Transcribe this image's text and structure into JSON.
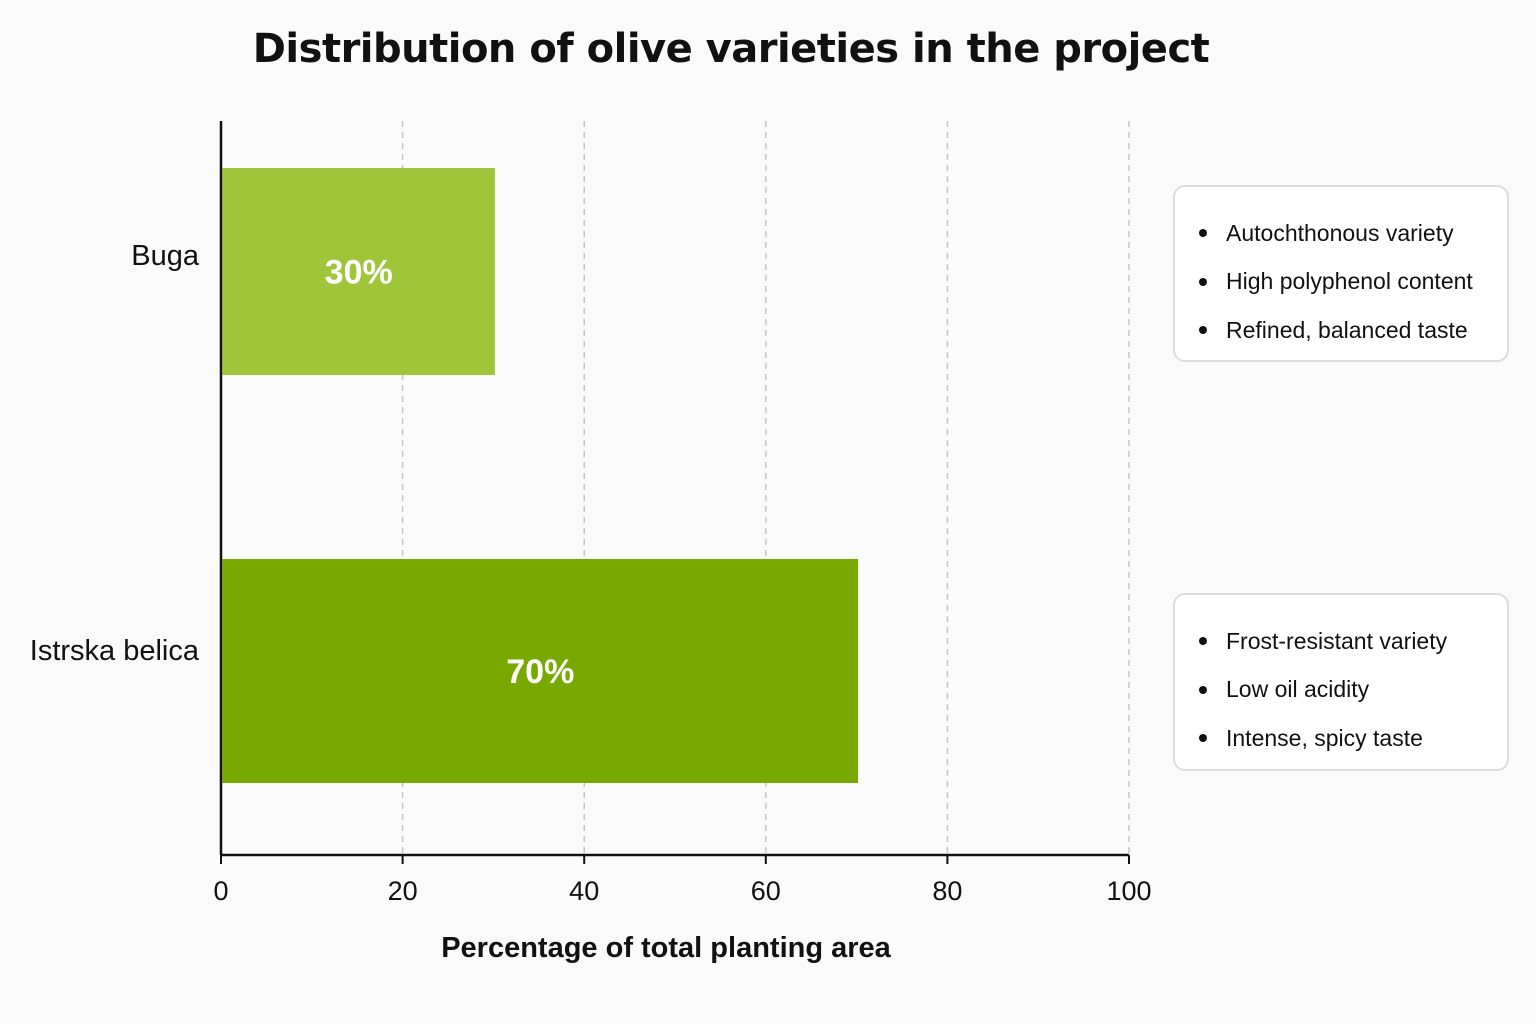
{
  "chart_data": {
    "type": "bar",
    "orientation": "horizontal",
    "title": "Distribution of olive varieties in the project",
    "xlabel": "Percentage of total planting area",
    "ylabel": "",
    "xlim": [
      0,
      100
    ],
    "xticks": [
      0,
      20,
      40,
      60,
      80,
      100
    ],
    "grid": true,
    "categories": [
      "Buga",
      "Istrska belica"
    ],
    "values": [
      30,
      70
    ],
    "value_labels": [
      "30%",
      "70%"
    ],
    "colors": [
      "#9fc63a",
      "#78a900"
    ]
  },
  "notes": [
    {
      "items": [
        "Autochthonous variety",
        "High polyphenol content",
        "Refined, balanced taste"
      ]
    },
    {
      "items": [
        "Frost-resistant variety",
        "Low oil acidity",
        "Intense, spicy taste"
      ]
    }
  ]
}
